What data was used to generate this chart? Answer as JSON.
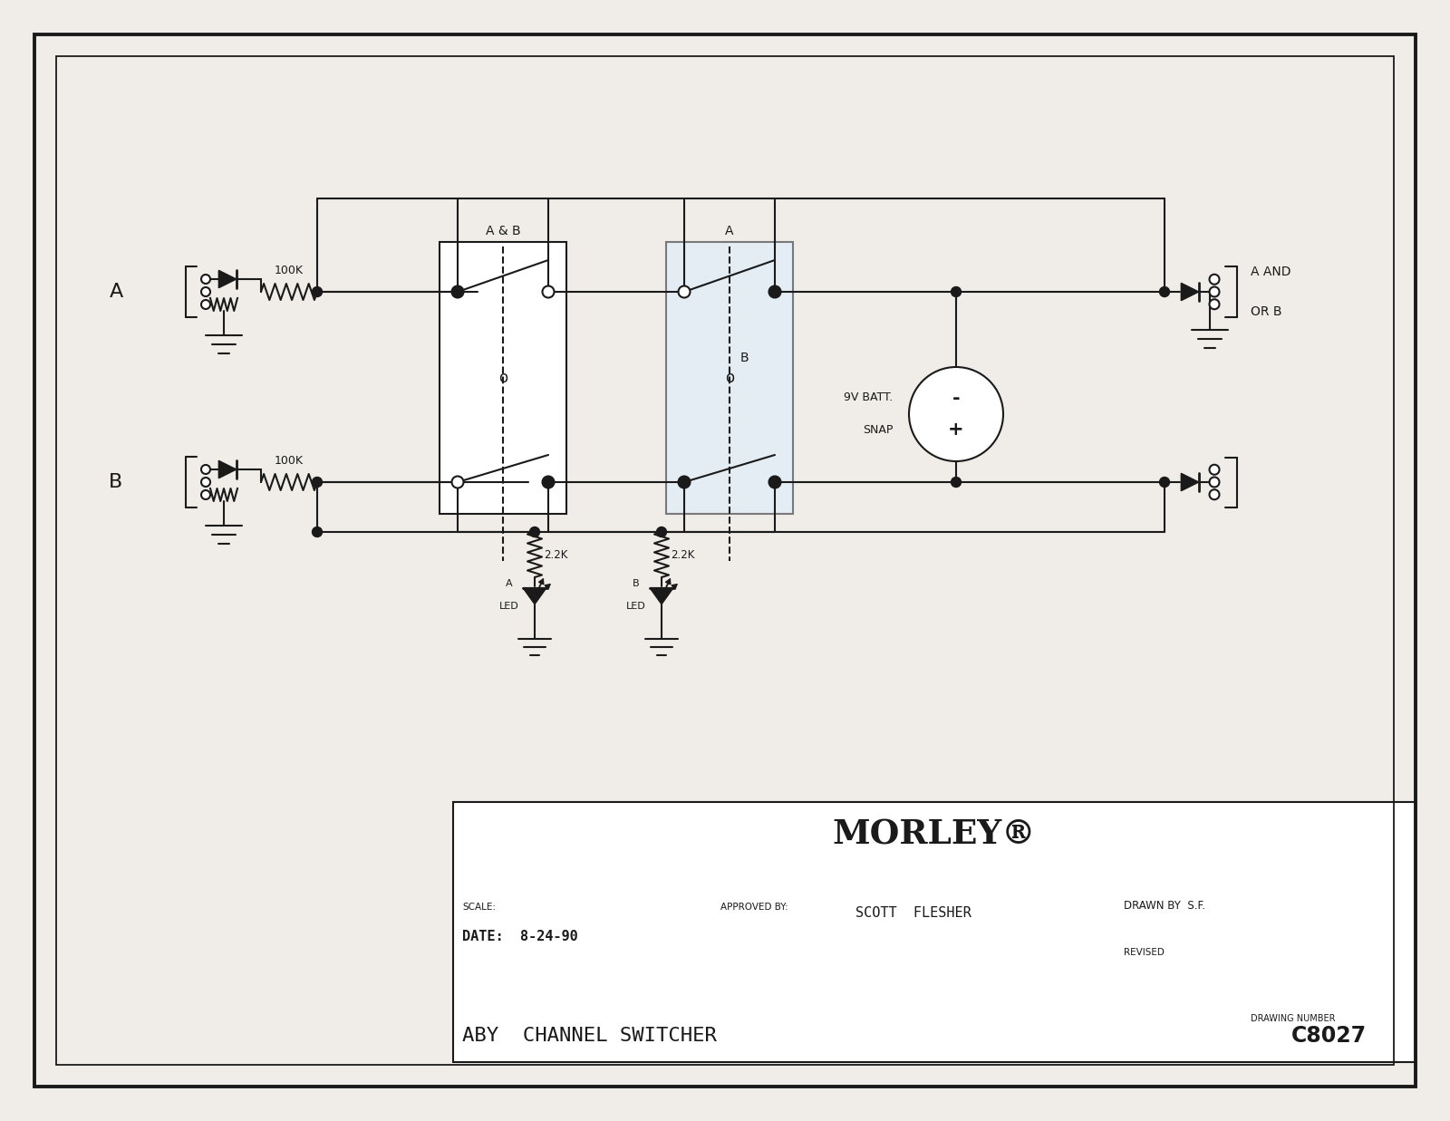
{
  "bg_color": "#f0ede8",
  "line_color": "#1a1a1a",
  "title_company": "MORLEY®",
  "scale_label": "SCALE:",
  "date_label": "DATE:",
  "date_value": "8-24-90",
  "approved_label": "APPROVED BY:",
  "approved_value": "SCOTT  FLESHER",
  "drawn_label": "DRAWN BY",
  "drawn_value": "S.F.",
  "revised_label": "REVISED",
  "title_label": "ABY  CHANNEL SWITCHER",
  "drawing_number_label": "DRAWING NUMBER",
  "drawing_number": "C8027",
  "label_A_input": "A",
  "label_B_input": "B",
  "label_100K": "100K",
  "label_AB": "A & B",
  "label_A_sw": "A",
  "label_B_sw": "B",
  "label_AND_OR_1": "A AND",
  "label_AND_OR_2": "OR B",
  "label_9v_1": "9V BATT.",
  "label_9v_2": "SNAP",
  "label_22k_1": "2.2K",
  "label_22k_2": "2.2K",
  "label_A_led": "A",
  "label_A_led2": "LED",
  "label_B_led": "B",
  "label_B_led2": "LED"
}
